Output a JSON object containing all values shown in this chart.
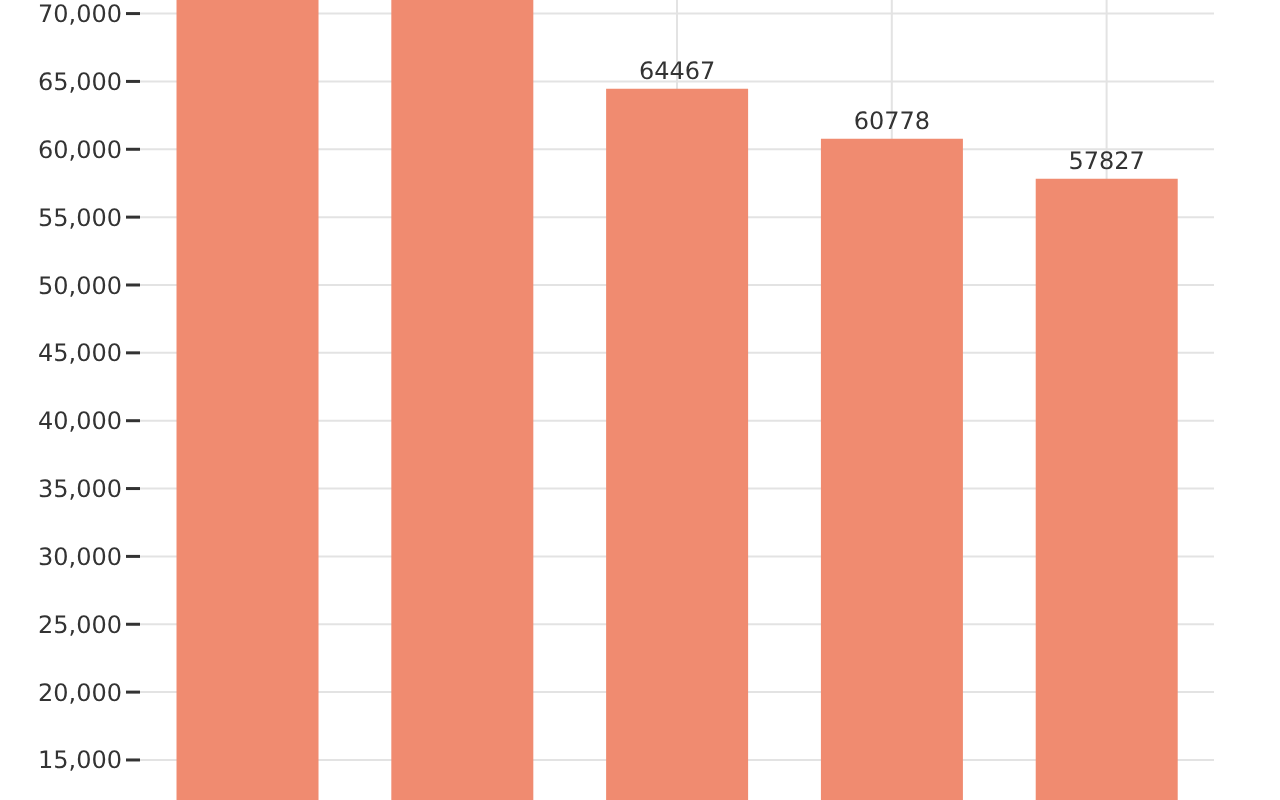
{
  "chart_data": {
    "type": "bar",
    "categories": [
      null,
      null,
      null,
      null,
      null
    ],
    "values": [
      71000,
      71000,
      64467,
      60778,
      57827
    ],
    "value_labels": [
      null,
      null,
      "64467",
      "60778",
      "57827"
    ],
    "color": "#f08b70",
    "ylim": [
      12050,
      71000
    ],
    "yticks": [
      {
        "value": 15000,
        "label": "15,000"
      },
      {
        "value": 20000,
        "label": "20,000"
      },
      {
        "value": 25000,
        "label": "25,000"
      },
      {
        "value": 30000,
        "label": "30,000"
      },
      {
        "value": 35000,
        "label": "35,000"
      },
      {
        "value": 40000,
        "label": "40,000"
      },
      {
        "value": 45000,
        "label": "45,000"
      },
      {
        "value": 50000,
        "label": "50,000"
      },
      {
        "value": 55000,
        "label": "55,000"
      },
      {
        "value": 60000,
        "label": "60,000"
      },
      {
        "value": 65000,
        "label": "65,000"
      },
      {
        "value": 70000,
        "label": "70,000"
      }
    ],
    "grid": true,
    "tick_labels": "y"
  }
}
